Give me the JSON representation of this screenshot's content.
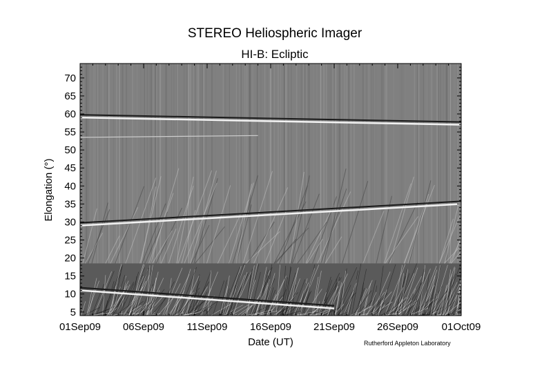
{
  "chart_data": {
    "type": "heatmap",
    "title": "STEREO Heliospheric Imager",
    "subtitle": "HI-B: Ecliptic",
    "xlabel": "Date (UT)",
    "ylabel": "Elongation (°)",
    "credit": "Rutherford Appleton Laboratory",
    "x_ticks": [
      "01Sep09",
      "06Sep09",
      "11Sep09",
      "16Sep09",
      "21Sep09",
      "26Sep09",
      "01Oct09"
    ],
    "x_range_days": [
      0,
      30
    ],
    "y_ticks": [
      5,
      10,
      15,
      20,
      25,
      30,
      35,
      40,
      45,
      50,
      55,
      60,
      65,
      70
    ],
    "ylim": [
      4,
      74
    ],
    "colormap": "grayscale",
    "grid": false,
    "features": [
      {
        "label": "bright band",
        "days": [
          0,
          30
        ],
        "elongation": [
          59.0,
          57.0
        ]
      },
      {
        "label": "bright band",
        "days": [
          0,
          30
        ],
        "elongation": [
          29.0,
          35.0
        ]
      },
      {
        "label": "bright band",
        "days": [
          0,
          20
        ],
        "elongation": [
          11.0,
          6.0
        ]
      },
      {
        "label": "faint band",
        "days": [
          0,
          14
        ],
        "elongation": [
          53.5,
          54.0
        ]
      }
    ]
  }
}
